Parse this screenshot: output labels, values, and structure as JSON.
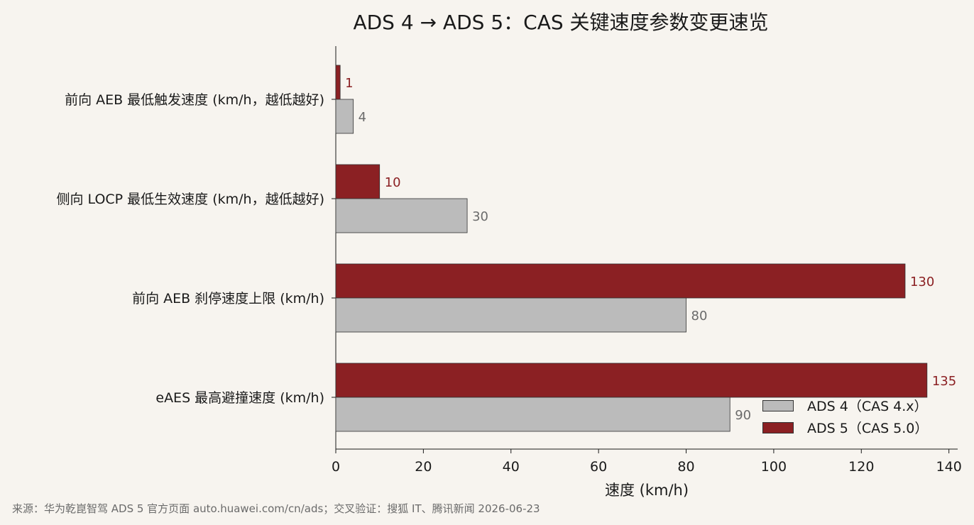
{
  "title": "ADS 4 → ADS 5：CAS 关键速度参数变更速览",
  "footnote": "来源：华为乾崑智驾 ADS 5 官方页面 auto.huawei.com/cn/ads；交叉验证：搜狐 IT、腾讯新闻 2026-06-23",
  "colors": {
    "background": "#f7f4ef",
    "ads4": "#bbbbbb",
    "ads5": "#8b2023",
    "ads4_label": "#6b6b6b",
    "ads5_label": "#8b2023"
  },
  "legend": {
    "items": [
      {
        "label": "ADS 4（CAS 4.x）",
        "color": "#bbbbbb"
      },
      {
        "label": "ADS 5（CAS 5.0）",
        "color": "#8b2023"
      }
    ]
  },
  "chart_data": {
    "type": "bar",
    "orientation": "horizontal",
    "title": "ADS 4 → ADS 5：CAS 关键速度参数变更速览",
    "xlabel": "速度 (km/h)",
    "ylabel": "",
    "xlim": [
      0,
      142
    ],
    "xticks": [
      0,
      20,
      40,
      60,
      80,
      100,
      120,
      140
    ],
    "grid": false,
    "legend_position": "bottom-right",
    "categories": [
      "前向 AEB 最低触发速度 (km/h，越低越好)",
      "侧向 LOCP 最低生效速度 (km/h，越低越好)",
      "前向 AEB 刹停速度上限 (km/h)",
      "eAES 最高避撞速度 (km/h)"
    ],
    "series": [
      {
        "name": "ADS 4（CAS 4.x）",
        "values": [
          4,
          30,
          80,
          90
        ]
      },
      {
        "name": "ADS 5（CAS 5.0）",
        "values": [
          1,
          10,
          130,
          135
        ]
      }
    ]
  }
}
